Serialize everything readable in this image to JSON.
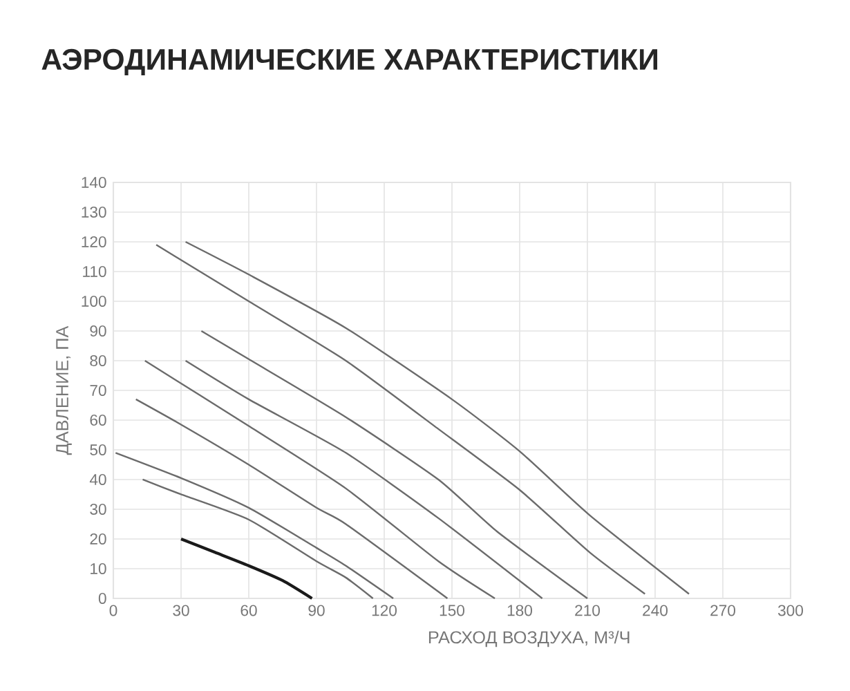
{
  "chart_data": {
    "type": "line",
    "title": "АЭРОДИНАМИЧЕСКИЕ ХАРАКТЕРИСТИКИ",
    "xlabel": "РАСХОД ВОЗДУХА, М³/Ч",
    "ylabel": "ДАВЛЕНИЕ, ПА",
    "xlim": [
      0,
      300
    ],
    "ylim": [
      0,
      140
    ],
    "xticks": [
      0,
      30,
      60,
      90,
      120,
      150,
      180,
      210,
      240,
      270,
      300
    ],
    "yticks": [
      0,
      10,
      20,
      30,
      40,
      50,
      60,
      70,
      80,
      90,
      100,
      110,
      120,
      130,
      140
    ],
    "grid": true,
    "marker": "none",
    "line_style": "solid",
    "series": [
      {
        "color": "#1a1a1a",
        "x": [
          30,
          45,
          60,
          75,
          88
        ],
        "values": [
          20,
          15.5,
          11,
          6,
          0
        ]
      },
      {
        "color": "#6b6b6b",
        "x": [
          13,
          30,
          60,
          90,
          103,
          115
        ],
        "values": [
          40,
          35,
          26.5,
          12.5,
          7,
          0
        ]
      },
      {
        "color": "#6b6b6b",
        "x": [
          1,
          30,
          60,
          90,
          103,
          124
        ],
        "values": [
          49,
          40.5,
          30.5,
          17,
          11,
          0
        ]
      },
      {
        "color": "#6b6b6b",
        "x": [
          10,
          30,
          60,
          90,
          103,
          148
        ],
        "values": [
          67,
          58.5,
          45,
          30.5,
          25,
          0
        ]
      },
      {
        "color": "#6b6b6b",
        "x": [
          14,
          60,
          103,
          144,
          169
        ],
        "values": [
          80,
          58,
          37,
          12.5,
          0
        ]
      },
      {
        "color": "#6b6b6b",
        "x": [
          32,
          60,
          103,
          144,
          190
        ],
        "values": [
          80,
          67,
          49,
          27,
          0
        ]
      },
      {
        "color": "#6b6b6b",
        "x": [
          39,
          60,
          103,
          144,
          170,
          210
        ],
        "values": [
          90,
          80.5,
          61,
          40,
          22.5,
          0
        ]
      },
      {
        "color": "#6b6b6b",
        "x": [
          19,
          60,
          103,
          144,
          180,
          211,
          235.5
        ],
        "values": [
          119,
          100,
          80,
          57,
          36.5,
          15.5,
          1.5
        ]
      },
      {
        "color": "#6b6b6b",
        "x": [
          32,
          60,
          103,
          150,
          180,
          211,
          255
        ],
        "values": [
          120,
          109,
          91,
          67,
          49.5,
          28,
          1.5
        ]
      }
    ]
  }
}
